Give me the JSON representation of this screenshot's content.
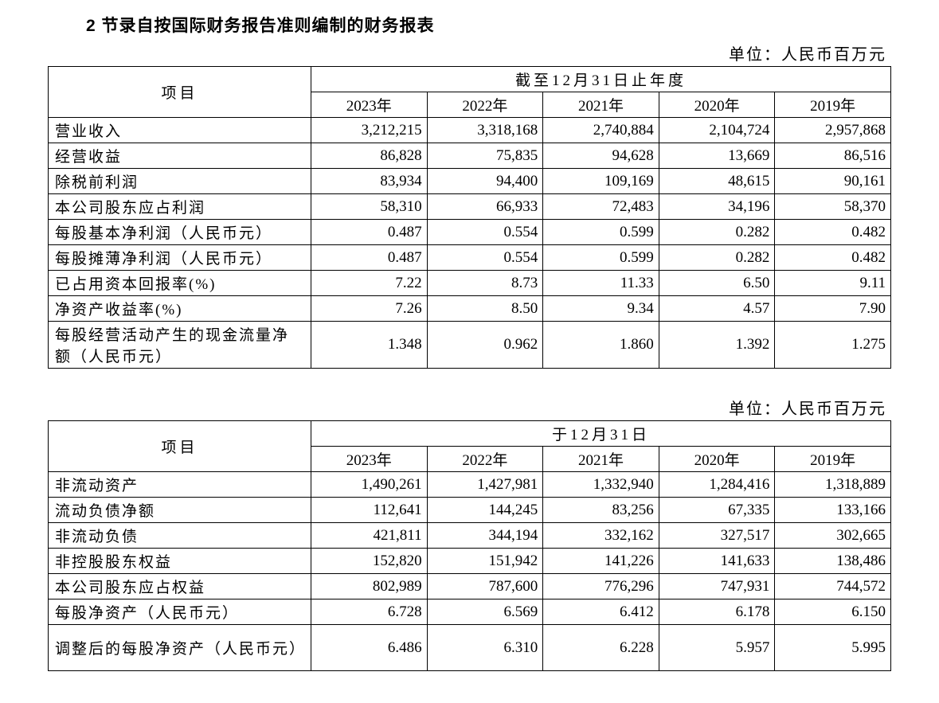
{
  "title": "2 节录自按国际财务报告准则编制的财务报表",
  "unit": "单位：人民币百万元",
  "itemHeader": "项目",
  "table1": {
    "periodHeader": "截至12月31日止年度",
    "years": [
      "2023年",
      "2022年",
      "2021年",
      "2020年",
      "2019年"
    ],
    "rows": [
      {
        "label": "营业收入",
        "vals": [
          "3,212,215",
          "3,318,168",
          "2,740,884",
          "2,104,724",
          "2,957,868"
        ],
        "tall": false
      },
      {
        "label": "经营收益",
        "vals": [
          "86,828",
          "75,835",
          "94,628",
          "13,669",
          "86,516"
        ],
        "tall": false
      },
      {
        "label": "除税前利润",
        "vals": [
          "83,934",
          "94,400",
          "109,169",
          "48,615",
          "90,161"
        ],
        "tall": false
      },
      {
        "label": "本公司股东应占利润",
        "vals": [
          "58,310",
          "66,933",
          "72,483",
          "34,196",
          "58,370"
        ],
        "tall": false
      },
      {
        "label": "每股基本净利润（人民币元）",
        "vals": [
          "0.487",
          "0.554",
          "0.599",
          "0.282",
          "0.482"
        ],
        "tall": false
      },
      {
        "label": "每股摊薄净利润（人民币元）",
        "vals": [
          "0.487",
          "0.554",
          "0.599",
          "0.282",
          "0.482"
        ],
        "tall": false
      },
      {
        "label": "已占用资本回报率(%)",
        "vals": [
          "7.22",
          "8.73",
          "11.33",
          "6.50",
          "9.11"
        ],
        "tall": false
      },
      {
        "label": "净资产收益率(%)",
        "vals": [
          "7.26",
          "8.50",
          "9.34",
          "4.57",
          "7.90"
        ],
        "tall": false
      },
      {
        "label": "每股经营活动产生的现金流量净额（人民币元）",
        "vals": [
          "1.348",
          "0.962",
          "1.860",
          "1.392",
          "1.275"
        ],
        "tall": true
      }
    ]
  },
  "table2": {
    "periodHeader": "于12月31日",
    "years": [
      "2023年",
      "2022年",
      "2021年",
      "2020年",
      "2019年"
    ],
    "rows": [
      {
        "label": "非流动资产",
        "vals": [
          "1,490,261",
          "1,427,981",
          "1,332,940",
          "1,284,416",
          "1,318,889"
        ],
        "tall": false
      },
      {
        "label": "流动负债净额",
        "vals": [
          "112,641",
          "144,245",
          "83,256",
          "67,335",
          "133,166"
        ],
        "tall": false
      },
      {
        "label": "非流动负债",
        "vals": [
          "421,811",
          "344,194",
          "332,162",
          "327,517",
          "302,665"
        ],
        "tall": false
      },
      {
        "label": "非控股股东权益",
        "vals": [
          "152,820",
          "151,942",
          "141,226",
          "141,633",
          "138,486"
        ],
        "tall": false
      },
      {
        "label": "本公司股东应占权益",
        "vals": [
          "802,989",
          "787,600",
          "776,296",
          "747,931",
          "744,572"
        ],
        "tall": false
      },
      {
        "label": "每股净资产（人民币元）",
        "vals": [
          "6.728",
          "6.569",
          "6.412",
          "6.178",
          "6.150"
        ],
        "tall": false
      },
      {
        "label": "调整后的每股净资产（人民币元）",
        "vals": [
          "6.486",
          "6.310",
          "6.228",
          "5.957",
          "5.995"
        ],
        "tall": true
      }
    ]
  }
}
